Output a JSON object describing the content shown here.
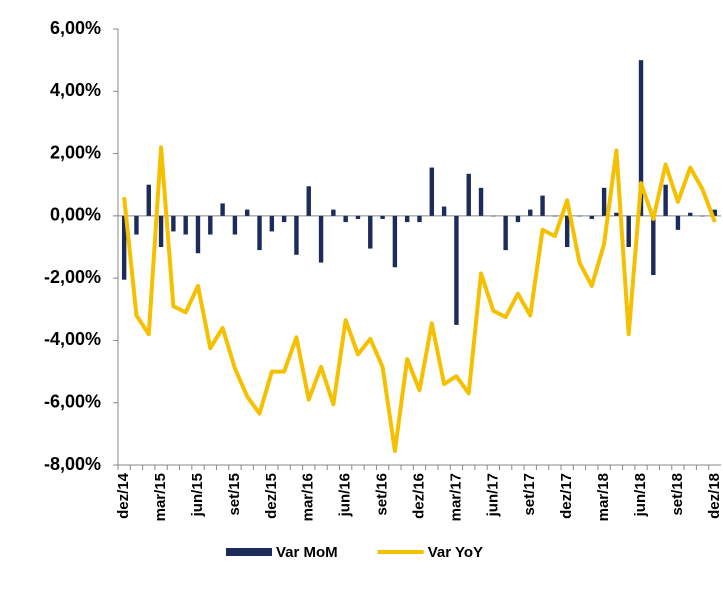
{
  "chart_data": {
    "type": "bar-line",
    "categories": [
      "dez/14",
      null,
      null,
      "mar/15",
      null,
      null,
      "jun/15",
      null,
      null,
      "set/15",
      null,
      null,
      "dez/15",
      null,
      null,
      "mar/16",
      null,
      null,
      "jun/16",
      null,
      null,
      "set/16",
      null,
      null,
      "dez/16",
      null,
      null,
      "mar/17",
      null,
      null,
      "jun/17",
      null,
      null,
      "set/17",
      null,
      null,
      "dez/17",
      null,
      null,
      "mar/18",
      null,
      null,
      "jun/18",
      null,
      null,
      "set/18",
      null,
      null,
      "dez/18"
    ],
    "series": [
      {
        "name": "Var MoM",
        "type": "bar",
        "color": "#1c2b5a",
        "values": [
          -2.05,
          -0.6,
          1.0,
          -1.0,
          -0.5,
          -0.6,
          -1.2,
          -0.6,
          0.4,
          -0.6,
          0.2,
          -1.1,
          -0.5,
          -0.2,
          -1.25,
          0.95,
          -1.5,
          0.2,
          -0.2,
          -0.1,
          -1.05,
          -0.1,
          -1.65,
          -0.2,
          -0.2,
          1.55,
          0.3,
          -3.5,
          1.35,
          0.9,
          0.0,
          -1.1,
          -0.2,
          0.2,
          0.65,
          0.0,
          -1.0,
          0.0,
          -0.1,
          0.9,
          0.1,
          -1.0,
          5.0,
          -1.9,
          1.0,
          -0.45,
          0.1,
          0.0,
          0.2
        ]
      },
      {
        "name": "Var YoY",
        "type": "line",
        "color": "#f5c000",
        "values": [
          0.6,
          -3.2,
          -3.8,
          2.2,
          -2.9,
          -3.1,
          -2.25,
          -4.25,
          -3.6,
          -4.9,
          -5.8,
          -6.35,
          -5.0,
          -5.0,
          -3.9,
          -5.9,
          -4.85,
          -6.05,
          -3.35,
          -4.45,
          -3.95,
          -4.85,
          -7.55,
          -4.6,
          -5.6,
          -3.45,
          -5.4,
          -5.15,
          -5.7,
          -1.85,
          -3.05,
          -3.25,
          -2.5,
          -3.2,
          -0.45,
          -0.65,
          0.5,
          -1.5,
          -2.25,
          -0.9,
          2.1,
          -3.8,
          1.05,
          -0.1,
          1.65,
          0.45,
          1.55,
          0.85,
          -0.2
        ]
      }
    ],
    "ylim": [
      -8,
      6
    ],
    "yticks": [
      {
        "value": -8,
        "label": "-8,00%"
      },
      {
        "value": -6,
        "label": "-6,00%"
      },
      {
        "value": -4,
        "label": "-4,00%"
      },
      {
        "value": -2,
        "label": "-2,00%"
      },
      {
        "value": 0,
        "label": "0,00%"
      },
      {
        "value": 2,
        "label": "2,00%"
      },
      {
        "value": 4,
        "label": "4,00%"
      },
      {
        "value": 6,
        "label": "6,00%"
      }
    ],
    "grid": false,
    "legend": "bottom"
  }
}
